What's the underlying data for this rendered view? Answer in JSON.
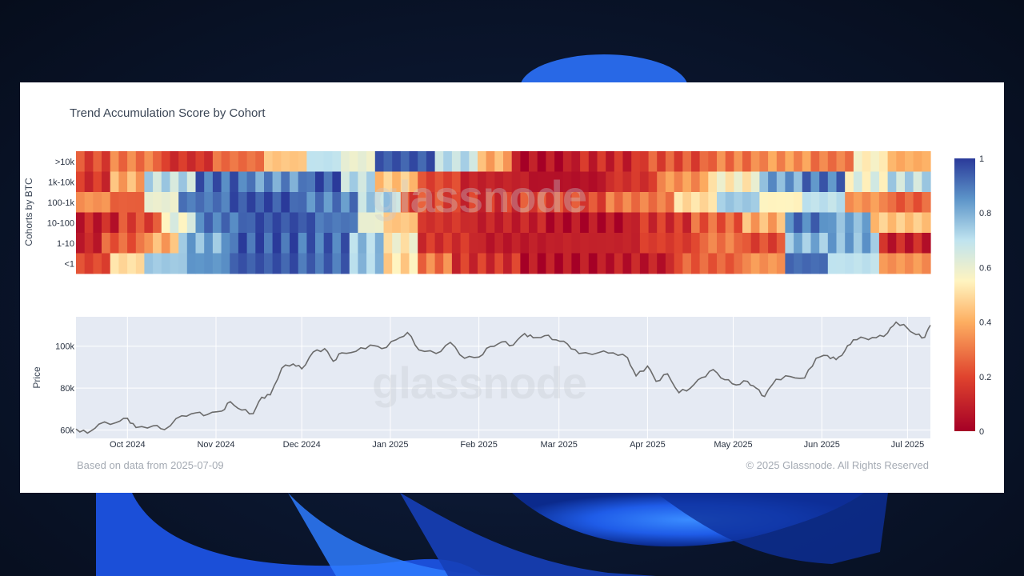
{
  "chart_data": [
    {
      "type": "heatmap",
      "title": "Trend Accumulation Score by Cohort",
      "ylabel": "Cohorts by BTC",
      "rows": [
        ">10k",
        "1k-10k",
        "100-1k",
        "10-100",
        "1-10",
        "<1"
      ],
      "x_start": "2024-09-13",
      "x_end": "2025-07-09",
      "colorbar": {
        "min": 0,
        "max": 1,
        "ticks": [
          "1",
          "0.8",
          "0.6",
          "0.4",
          "0.2",
          "0"
        ]
      },
      "segments": {
        ">10k": [
          [
            0,
            4,
            0.2
          ],
          [
            4,
            10,
            0.3
          ],
          [
            10,
            16,
            0.15
          ],
          [
            16,
            22,
            0.28
          ],
          [
            22,
            27,
            0.45
          ],
          [
            27,
            31,
            0.7
          ],
          [
            31,
            35,
            0.6
          ],
          [
            35,
            42,
            0.95
          ],
          [
            42,
            47,
            0.7
          ],
          [
            47,
            51,
            0.4
          ],
          [
            51,
            58,
            0.05
          ],
          [
            58,
            66,
            0.12
          ],
          [
            66,
            74,
            0.22
          ],
          [
            74,
            80,
            0.3
          ],
          [
            80,
            86,
            0.35
          ],
          [
            86,
            91,
            0.3
          ],
          [
            91,
            95,
            0.55
          ],
          [
            95,
            100,
            0.4
          ]
        ],
        "1k-10k": [
          [
            0,
            4,
            0.15
          ],
          [
            4,
            8,
            0.4
          ],
          [
            8,
            14,
            0.7
          ],
          [
            14,
            20,
            0.92
          ],
          [
            20,
            27,
            0.85
          ],
          [
            27,
            31,
            0.95
          ],
          [
            31,
            35,
            0.7
          ],
          [
            35,
            40,
            0.45
          ],
          [
            40,
            45,
            0.2
          ],
          [
            45,
            53,
            0.1
          ],
          [
            53,
            62,
            0.05
          ],
          [
            62,
            68,
            0.15
          ],
          [
            68,
            74,
            0.35
          ],
          [
            74,
            80,
            0.55
          ],
          [
            80,
            85,
            0.82
          ],
          [
            85,
            90,
            0.9
          ],
          [
            90,
            95,
            0.6
          ],
          [
            95,
            100,
            0.7
          ]
        ],
        "100-1k": [
          [
            0,
            4,
            0.35
          ],
          [
            4,
            8,
            0.25
          ],
          [
            8,
            12,
            0.6
          ],
          [
            12,
            18,
            0.9
          ],
          [
            18,
            26,
            0.96
          ],
          [
            26,
            33,
            0.88
          ],
          [
            33,
            38,
            0.72
          ],
          [
            38,
            44,
            0.2
          ],
          [
            44,
            52,
            0.15
          ],
          [
            52,
            62,
            0.2
          ],
          [
            62,
            70,
            0.3
          ],
          [
            70,
            75,
            0.5
          ],
          [
            75,
            80,
            0.75
          ],
          [
            80,
            85,
            0.55
          ],
          [
            85,
            90,
            0.7
          ],
          [
            90,
            95,
            0.35
          ],
          [
            95,
            100,
            0.25
          ]
        ],
        "10-100": [
          [
            0,
            5,
            0.1
          ],
          [
            5,
            10,
            0.2
          ],
          [
            10,
            14,
            0.6
          ],
          [
            14,
            20,
            0.9
          ],
          [
            20,
            28,
            0.96
          ],
          [
            28,
            33,
            0.9
          ],
          [
            33,
            36,
            0.6
          ],
          [
            36,
            40,
            0.45
          ],
          [
            40,
            46,
            0.15
          ],
          [
            46,
            55,
            0.1
          ],
          [
            55,
            65,
            0.05
          ],
          [
            65,
            72,
            0.15
          ],
          [
            72,
            78,
            0.25
          ],
          [
            78,
            83,
            0.4
          ],
          [
            83,
            88,
            0.9
          ],
          [
            88,
            93,
            0.8
          ],
          [
            93,
            100,
            0.45
          ]
        ],
        "1-10": [
          [
            0,
            3,
            0.1
          ],
          [
            3,
            8,
            0.25
          ],
          [
            8,
            12,
            0.4
          ],
          [
            12,
            18,
            0.8
          ],
          [
            18,
            26,
            0.95
          ],
          [
            26,
            32,
            0.92
          ],
          [
            32,
            36,
            0.75
          ],
          [
            36,
            40,
            0.55
          ],
          [
            40,
            47,
            0.15
          ],
          [
            47,
            56,
            0.08
          ],
          [
            56,
            66,
            0.1
          ],
          [
            66,
            73,
            0.18
          ],
          [
            73,
            78,
            0.3
          ],
          [
            78,
            83,
            0.2
          ],
          [
            83,
            88,
            0.78
          ],
          [
            88,
            94,
            0.8
          ],
          [
            94,
            100,
            0.1
          ]
        ],
        "<1": [
          [
            0,
            4,
            0.2
          ],
          [
            4,
            8,
            0.5
          ],
          [
            8,
            13,
            0.75
          ],
          [
            13,
            18,
            0.85
          ],
          [
            18,
            26,
            0.95
          ],
          [
            26,
            32,
            0.92
          ],
          [
            32,
            36,
            0.75
          ],
          [
            36,
            40,
            0.5
          ],
          [
            40,
            44,
            0.3
          ],
          [
            44,
            52,
            0.15
          ],
          [
            52,
            62,
            0.05
          ],
          [
            62,
            70,
            0.08
          ],
          [
            70,
            78,
            0.25
          ],
          [
            78,
            83,
            0.35
          ],
          [
            83,
            88,
            0.92
          ],
          [
            88,
            94,
            0.7
          ],
          [
            94,
            100,
            0.35
          ]
        ]
      },
      "watermark": "glassnode"
    },
    {
      "type": "line",
      "ylabel": "Price",
      "y_ticks": [
        "100k",
        "80k",
        "60k"
      ],
      "y_tick_values": [
        100000,
        80000,
        60000
      ],
      "ylim": [
        56000,
        114000
      ],
      "x_ticks": [
        "Oct 2024",
        "Nov 2024",
        "Dec 2024",
        "Jan 2025",
        "Feb 2025",
        "Mar 2025",
        "Apr 2025",
        "May 2025",
        "Jun 2025",
        "Jul 2025"
      ],
      "x_tick_dates": [
        "2024-10-01",
        "2024-11-01",
        "2024-12-01",
        "2025-01-01",
        "2025-02-01",
        "2025-03-01",
        "2025-04-01",
        "2025-05-01",
        "2025-06-01",
        "2025-07-01"
      ],
      "x_start": "2024-09-13",
      "x_end": "2025-07-09",
      "series": [
        {
          "points": [
            [
              "2024-09-13",
              60500
            ],
            [
              "2024-09-17",
              58500
            ],
            [
              "2024-09-21",
              62800
            ],
            [
              "2024-09-27",
              63500
            ],
            [
              "2024-10-01",
              65600
            ],
            [
              "2024-10-04",
              61200
            ],
            [
              "2024-10-10",
              62000
            ],
            [
              "2024-10-14",
              60200
            ],
            [
              "2024-10-20",
              66800
            ],
            [
              "2024-10-25",
              68200
            ],
            [
              "2024-10-29",
              67400
            ],
            [
              "2024-11-03",
              69000
            ],
            [
              "2024-11-06",
              73500
            ],
            [
              "2024-11-10",
              69500
            ],
            [
              "2024-11-14",
              67800
            ],
            [
              "2024-11-17",
              75600
            ],
            [
              "2024-11-20",
              76800
            ],
            [
              "2024-11-24",
              89500
            ],
            [
              "2024-11-28",
              91500
            ],
            [
              "2024-12-01",
              89200
            ],
            [
              "2024-12-05",
              97200
            ],
            [
              "2024-12-09",
              98800
            ],
            [
              "2024-12-12",
              92800
            ],
            [
              "2024-12-15",
              96800
            ],
            [
              "2024-12-20",
              97500
            ],
            [
              "2024-12-25",
              100500
            ],
            [
              "2024-12-29",
              98800
            ],
            [
              "2025-01-03",
              103000
            ],
            [
              "2025-01-07",
              106500
            ],
            [
              "2025-01-11",
              98200
            ],
            [
              "2025-01-17",
              96500
            ],
            [
              "2025-01-22",
              101800
            ],
            [
              "2025-01-27",
              94200
            ],
            [
              "2025-02-01",
              94800
            ],
            [
              "2025-02-05",
              99800
            ],
            [
              "2025-02-09",
              102000
            ],
            [
              "2025-02-13",
              100500
            ],
            [
              "2025-02-17",
              106000
            ],
            [
              "2025-02-20",
              104000
            ],
            [
              "2025-02-24",
              105000
            ],
            [
              "2025-02-28",
              103000
            ],
            [
              "2025-03-04",
              101000
            ],
            [
              "2025-03-08",
              96500
            ],
            [
              "2025-03-15",
              97000
            ],
            [
              "2025-03-20",
              96800
            ],
            [
              "2025-03-25",
              94500
            ],
            [
              "2025-03-28",
              85800
            ],
            [
              "2025-04-01",
              90500
            ],
            [
              "2025-04-04",
              83200
            ],
            [
              "2025-04-08",
              86800
            ],
            [
              "2025-04-12",
              77800
            ],
            [
              "2025-04-16",
              80000
            ],
            [
              "2025-04-20",
              85000
            ],
            [
              "2025-04-24",
              88800
            ],
            [
              "2025-04-28",
              84000
            ],
            [
              "2025-05-02",
              81500
            ],
            [
              "2025-05-06",
              83200
            ],
            [
              "2025-05-09",
              80000
            ],
            [
              "2025-05-12",
              76000
            ],
            [
              "2025-05-16",
              84200
            ],
            [
              "2025-05-21",
              85500
            ],
            [
              "2025-05-26",
              84800
            ],
            [
              "2025-05-30",
              94200
            ],
            [
              "2025-06-03",
              95500
            ],
            [
              "2025-06-06",
              93600
            ],
            [
              "2025-06-09",
              97600
            ],
            [
              "2025-06-12",
              103000
            ],
            [
              "2025-06-16",
              103800
            ],
            [
              "2025-06-20",
              104000
            ],
            [
              "2025-06-24",
              106200
            ],
            [
              "2025-06-27",
              111500
            ],
            [
              "2025-07-01",
              108500
            ],
            [
              "2025-07-04",
              105500
            ],
            [
              "2025-07-07",
              104200
            ],
            [
              "2025-07-09",
              110000
            ]
          ]
        }
      ],
      "watermark": "glassnode"
    }
  ],
  "footer": {
    "left": "Based on data from 2025-07-09",
    "right": "© 2025 Glassnode. All Rights Reserved"
  }
}
